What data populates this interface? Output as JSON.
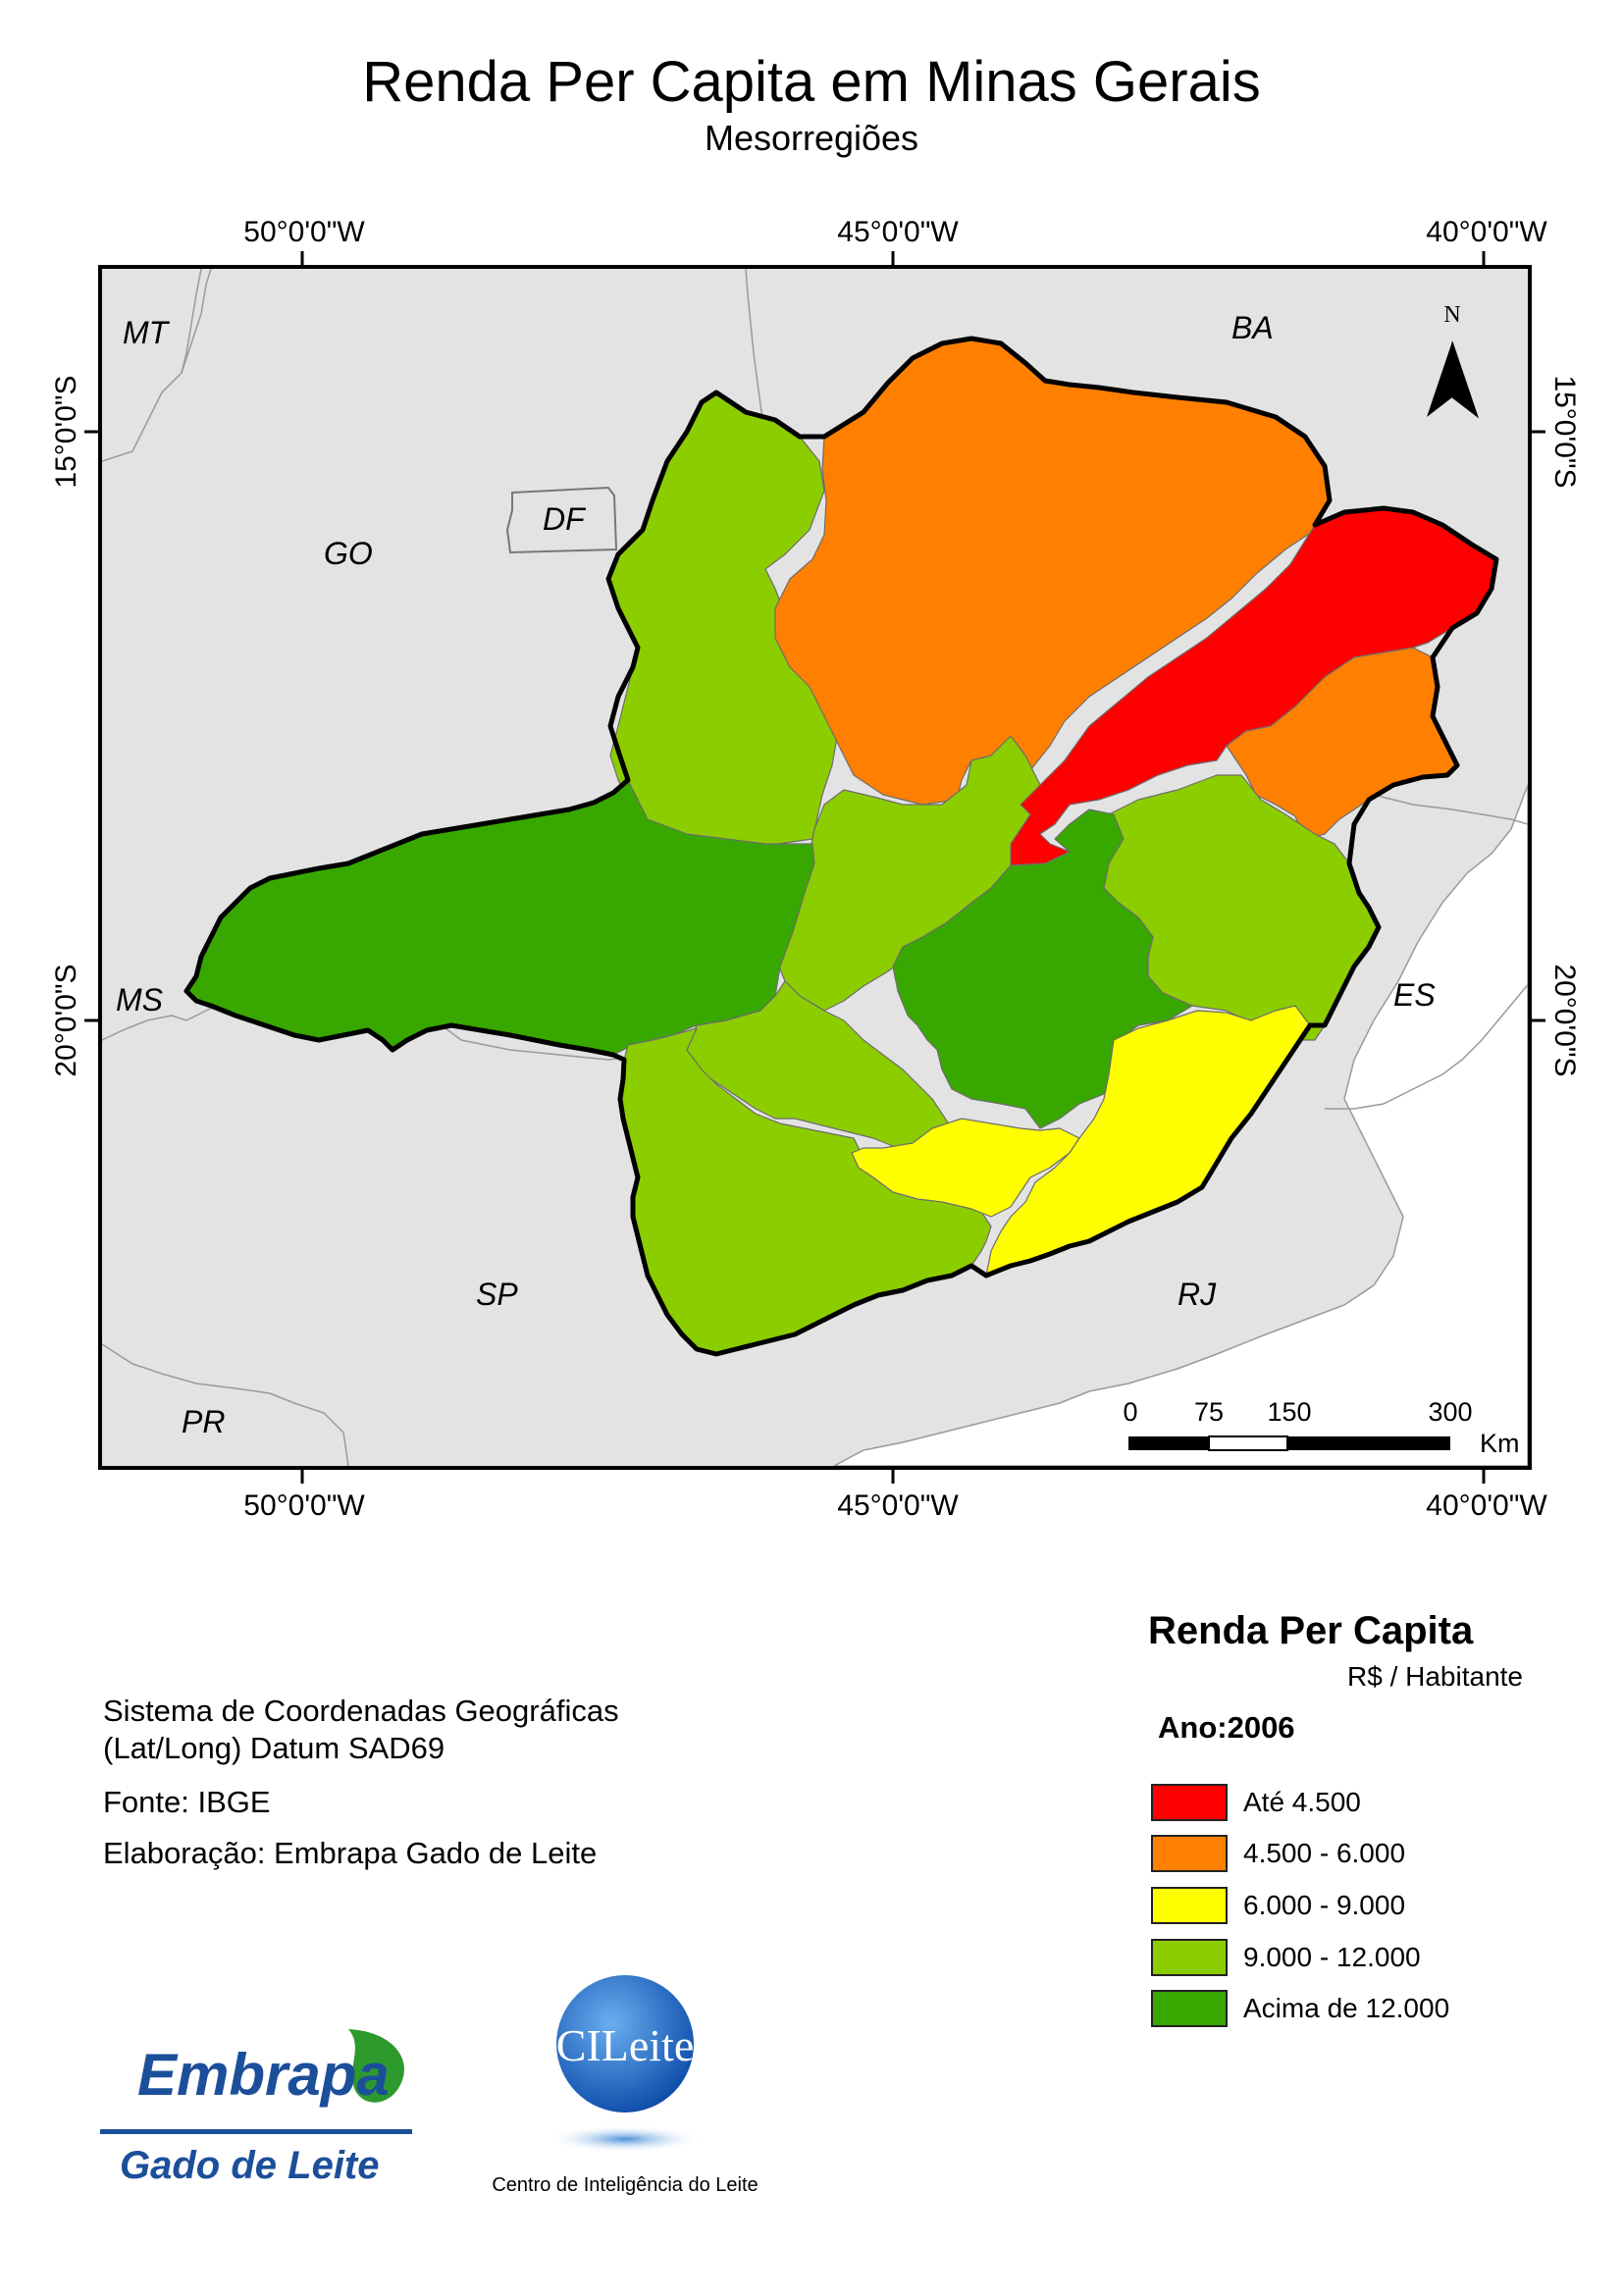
{
  "header": {
    "title": "Renda Per Capita em Minas Gerais",
    "subtitle": "Mesorregiões"
  },
  "graticule": {
    "top_labels": [
      "50°0'0\"W",
      "45°0'0\"W",
      "40°0'0\"W"
    ],
    "bottom_labels": [
      "50°0'0\"W",
      "45°0'0\"W",
      "40°0'0\"W"
    ],
    "left_labels": [
      "15°0'0\"S",
      "20°0'0\"S"
    ],
    "right_labels": [
      "15°0'0\"S",
      "20°0'0\"S"
    ]
  },
  "map": {
    "states": {
      "mt": "MT",
      "ba": "BA",
      "go": "GO",
      "df": "DF",
      "ms": "MS",
      "es": "ES",
      "sp": "SP",
      "rj": "RJ",
      "pr": "PR"
    },
    "north_label": "N",
    "scale": {
      "ticks": [
        "0",
        "75",
        "150",
        "300"
      ],
      "unit": "Km"
    }
  },
  "info": {
    "coord_system_1": "Sistema de Coordenadas Geográficas",
    "coord_system_2": "(Lat/Long) Datum SAD69",
    "source": "Fonte: IBGE",
    "author": "Elaboração: Embrapa Gado de Leite"
  },
  "legend": {
    "title": "Renda Per Capita",
    "unit": "R$ / Habitante",
    "year": "Ano:2006",
    "items": [
      {
        "label": "Até 4.500",
        "color": "#ff0000"
      },
      {
        "label": "4.500 - 6.000",
        "color": "#ff8000"
      },
      {
        "label": "6.000 - 9.000",
        "color": "#ffff00"
      },
      {
        "label": "9.000 - 12.000",
        "color": "#8ccd00"
      },
      {
        "label": "Acima de 12.000",
        "color": "#38a800"
      }
    ]
  },
  "logos": {
    "embrapa_1": "Embrapa",
    "embrapa_2": "Gado de Leite",
    "cileite_1": "CILeite",
    "cileite_2": "Centro de Inteligência do Leite"
  }
}
